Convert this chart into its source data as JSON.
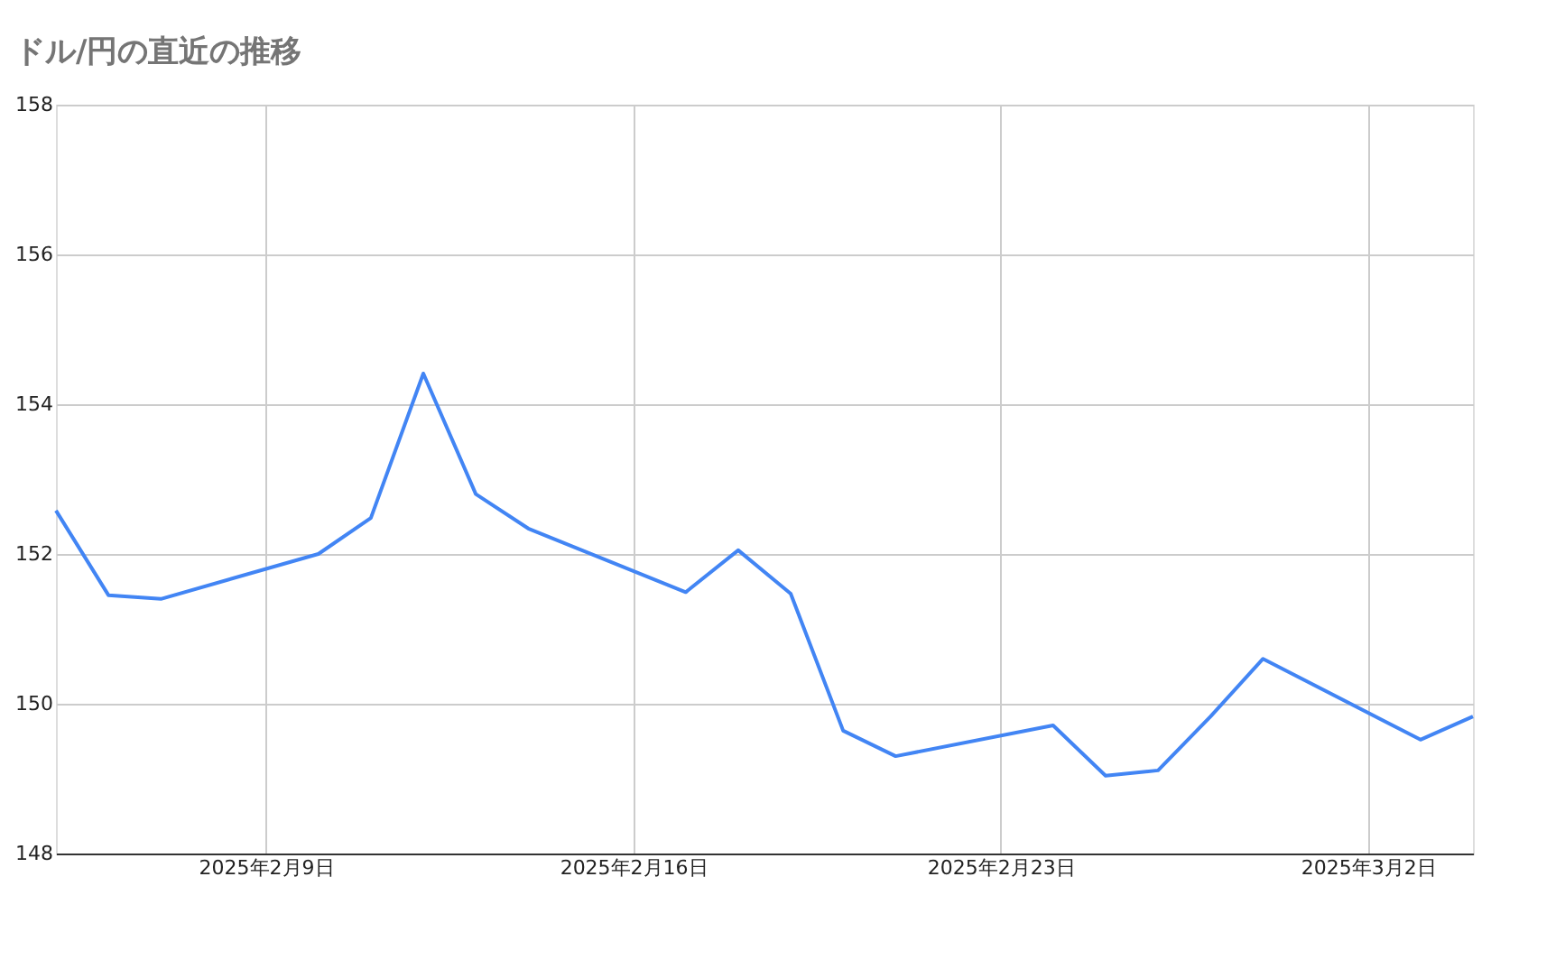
{
  "chart_data": {
    "type": "line",
    "title": "ドル/円の直近の推移",
    "x": [
      "2025-02-05",
      "2025-02-06",
      "2025-02-07",
      "2025-02-10",
      "2025-02-11",
      "2025-02-12",
      "2025-02-13",
      "2025-02-14",
      "2025-02-17",
      "2025-02-18",
      "2025-02-19",
      "2025-02-20",
      "2025-02-21",
      "2025-02-24",
      "2025-02-25",
      "2025-02-26",
      "2025-02-27",
      "2025-02-28",
      "2025-03-03",
      "2025-03-04"
    ],
    "series": [
      {
        "color": "#4285f4",
        "values": [
          152.58,
          151.45,
          151.4,
          152.0,
          152.48,
          154.41,
          152.8,
          152.34,
          151.49,
          152.05,
          151.47,
          149.64,
          149.3,
          149.71,
          149.04,
          149.11,
          149.83,
          150.6,
          149.52,
          149.83
        ]
      }
    ],
    "xlim": [
      "2025-02-05",
      "2025-03-04"
    ],
    "xticks": [
      {
        "value": "2025-02-09",
        "label": "2025年2月9日"
      },
      {
        "value": "2025-02-16",
        "label": "2025年2月16日"
      },
      {
        "value": "2025-02-23",
        "label": "2025年2月23日"
      },
      {
        "value": "2025-03-02",
        "label": "2025年3月2日"
      }
    ],
    "ylim": [
      148,
      158
    ],
    "yticks": [
      148,
      150,
      152,
      154,
      156,
      158
    ],
    "grid": true,
    "marker": "none",
    "line_style": "solid"
  }
}
